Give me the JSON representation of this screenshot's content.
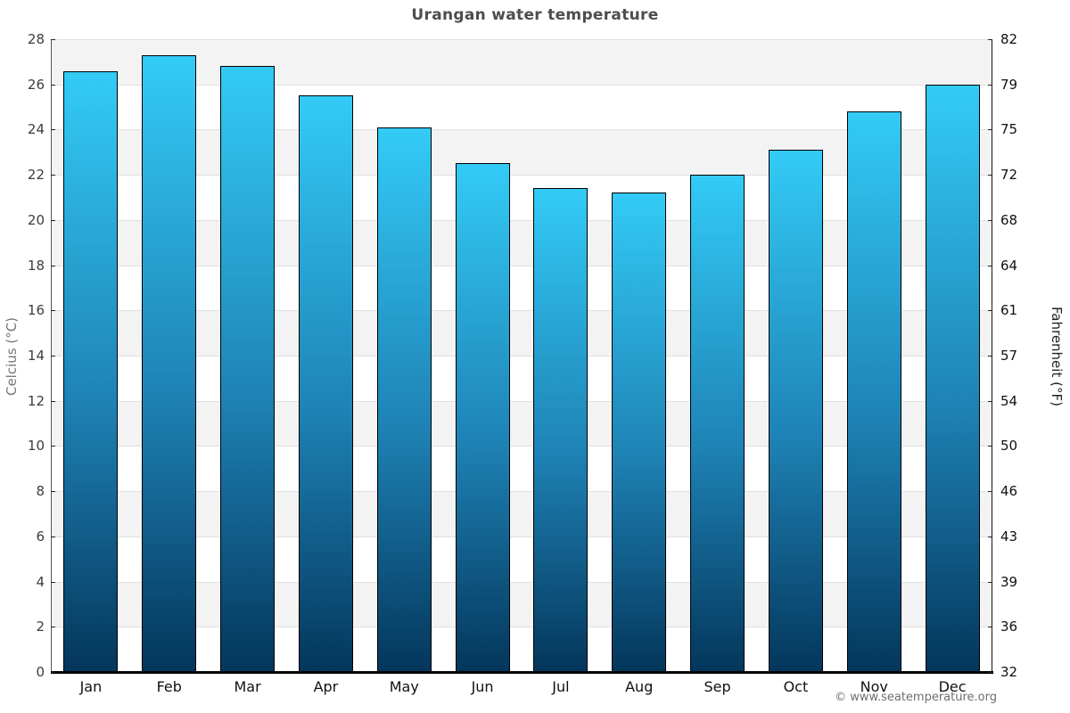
{
  "title": "Urangan water temperature",
  "footer": {
    "copyright": "© www.seatemperature.org"
  },
  "chart_data": {
    "type": "bar",
    "title": "Urangan water temperature",
    "categories": [
      "Jan",
      "Feb",
      "Mar",
      "Apr",
      "May",
      "Jun",
      "Jul",
      "Aug",
      "Sep",
      "Oct",
      "Nov",
      "Dec"
    ],
    "values": [
      26.6,
      27.3,
      26.8,
      25.5,
      24.1,
      22.5,
      21.4,
      21.2,
      22.0,
      23.1,
      24.8,
      26.0
    ],
    "xlabel": "",
    "ylabel_left": "Celcius (°C)",
    "ylabel_right": "Fahrenheit (°F)",
    "ylim_left": [
      0,
      28
    ],
    "ylim_right": [
      32,
      82
    ],
    "yticks_left": [
      0,
      2,
      4,
      6,
      8,
      10,
      12,
      14,
      16,
      18,
      20,
      22,
      24,
      26,
      28
    ],
    "yticks_right_labels": [
      "32",
      "36",
      "39",
      "43",
      "46",
      "50",
      "54",
      "57",
      "61",
      "64",
      "68",
      "72",
      "75",
      "79",
      "82"
    ],
    "grid": "horizontal-bands-alternating",
    "legend": "none",
    "colors": {
      "bar_gradient_top": "#33cbf6",
      "bar_gradient_mid": "#1e82b5",
      "bar_gradient_bottom": "#04365b",
      "bar_border": "#000000",
      "band_gray": "#f3f3f3",
      "band_white": "#ffffff",
      "gridline": "#e0e0e0",
      "axis_bottom": "#000000",
      "title_text": "#4d4d4d",
      "tick_text_left": "#3c3c3c",
      "tick_text_right": "#111111",
      "footer_text": "#6e6e6e"
    }
  }
}
